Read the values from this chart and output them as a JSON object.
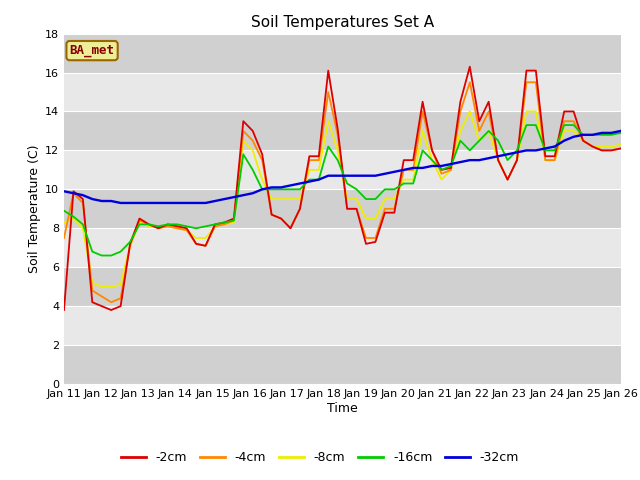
{
  "title": "Soil Temperatures Set A",
  "xlabel": "Time",
  "ylabel": "Soil Temperature (C)",
  "xlim": [
    0,
    15
  ],
  "ylim": [
    0,
    18
  ],
  "yticks": [
    0,
    2,
    4,
    6,
    8,
    10,
    12,
    14,
    16,
    18
  ],
  "xtick_labels": [
    "Jan 11",
    "Jan 12",
    "Jan 13",
    "Jan 14",
    "Jan 15",
    "Jan 16",
    "Jan 17",
    "Jan 18",
    "Jan 19",
    "Jan 20",
    "Jan 21",
    "Jan 22",
    "Jan 23",
    "Jan 24",
    "Jan 25",
    "Jan 26"
  ],
  "annotation": "BA_met",
  "bg_color": "#e8e8e8",
  "bg_stripe_color": "#d0d0d0",
  "legend": [
    {
      "label": "-2cm",
      "color": "#dd0000"
    },
    {
      "label": "-4cm",
      "color": "#ff8800"
    },
    {
      "label": "-8cm",
      "color": "#eeee00"
    },
    {
      "label": "-16cm",
      "color": "#00cc00"
    },
    {
      "label": "-32cm",
      "color": "#0000dd"
    }
  ],
  "series": {
    "d2": [
      3.8,
      9.9,
      9.5,
      4.2,
      4.0,
      3.8,
      4.0,
      7.2,
      8.5,
      8.2,
      8.0,
      8.2,
      8.1,
      8.0,
      7.2,
      7.1,
      8.2,
      8.3,
      8.5,
      13.5,
      13.0,
      11.8,
      8.7,
      8.5,
      8.0,
      9.0,
      11.7,
      11.7,
      16.1,
      13.1,
      9.0,
      9.0,
      7.2,
      7.3,
      8.8,
      8.8,
      11.5,
      11.5,
      14.5,
      12.0,
      11.0,
      11.1,
      14.5,
      16.3,
      13.5,
      14.5,
      11.5,
      10.5,
      11.5,
      16.1,
      16.1,
      11.7,
      11.7,
      14.0,
      14.0,
      12.5,
      12.2,
      12.0,
      12.0,
      12.1
    ],
    "d4": [
      7.5,
      9.8,
      9.3,
      4.8,
      4.5,
      4.2,
      4.4,
      7.1,
      8.4,
      8.2,
      8.0,
      8.1,
      8.0,
      7.9,
      7.2,
      7.1,
      8.1,
      8.2,
      8.4,
      13.0,
      12.5,
      11.5,
      8.7,
      8.5,
      8.0,
      9.0,
      11.5,
      11.5,
      15.0,
      12.8,
      9.0,
      9.0,
      7.5,
      7.5,
      9.0,
      9.0,
      11.0,
      11.0,
      14.0,
      12.0,
      10.8,
      11.0,
      14.0,
      15.5,
      13.0,
      14.0,
      11.5,
      10.5,
      11.5,
      15.5,
      15.5,
      11.5,
      11.5,
      13.5,
      13.5,
      12.5,
      12.2,
      12.0,
      12.0,
      12.1
    ],
    "d8": [
      8.3,
      8.5,
      8.0,
      5.2,
      5.0,
      5.0,
      5.1,
      7.1,
      8.3,
      8.1,
      8.1,
      8.1,
      8.0,
      7.9,
      7.5,
      7.5,
      8.1,
      8.2,
      8.3,
      12.5,
      12.0,
      10.5,
      9.5,
      9.5,
      9.5,
      9.5,
      11.0,
      11.0,
      13.5,
      12.0,
      9.5,
      9.5,
      8.5,
      8.5,
      9.5,
      9.5,
      10.5,
      10.5,
      13.0,
      11.5,
      10.5,
      11.0,
      13.0,
      14.0,
      12.5,
      13.0,
      11.5,
      10.5,
      11.5,
      14.0,
      14.0,
      11.5,
      11.5,
      13.0,
      13.0,
      12.5,
      12.2,
      12.2,
      12.2,
      12.3
    ],
    "d16": [
      8.9,
      8.6,
      8.2,
      6.8,
      6.6,
      6.6,
      6.8,
      7.3,
      8.2,
      8.2,
      8.1,
      8.2,
      8.2,
      8.1,
      8.0,
      8.1,
      8.2,
      8.3,
      8.4,
      11.8,
      11.0,
      10.0,
      10.0,
      10.0,
      10.0,
      10.0,
      10.5,
      10.5,
      12.2,
      11.5,
      10.3,
      10.0,
      9.5,
      9.5,
      10.0,
      10.0,
      10.3,
      10.3,
      12.0,
      11.5,
      11.0,
      11.2,
      12.5,
      12.0,
      12.5,
      13.0,
      12.5,
      11.5,
      12.0,
      13.3,
      13.3,
      12.0,
      12.0,
      13.3,
      13.3,
      12.8,
      12.8,
      12.8,
      12.8,
      12.9
    ],
    "d32": [
      9.9,
      9.8,
      9.7,
      9.5,
      9.4,
      9.4,
      9.3,
      9.3,
      9.3,
      9.3,
      9.3,
      9.3,
      9.3,
      9.3,
      9.3,
      9.3,
      9.4,
      9.5,
      9.6,
      9.7,
      9.8,
      10.0,
      10.1,
      10.1,
      10.2,
      10.3,
      10.4,
      10.5,
      10.7,
      10.7,
      10.7,
      10.7,
      10.7,
      10.7,
      10.8,
      10.9,
      11.0,
      11.1,
      11.1,
      11.2,
      11.2,
      11.3,
      11.4,
      11.5,
      11.5,
      11.6,
      11.7,
      11.8,
      11.9,
      12.0,
      12.0,
      12.1,
      12.2,
      12.5,
      12.7,
      12.8,
      12.8,
      12.9,
      12.9,
      13.0
    ]
  }
}
